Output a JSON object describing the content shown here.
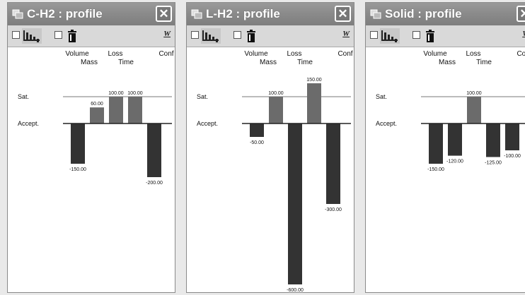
{
  "windows": [
    {
      "title": "C-H2 : profile",
      "toolbar": {
        "right_label": "W"
      },
      "chart_data": {
        "type": "bar",
        "categories": [
          "Volume",
          "Mass",
          "Loss",
          "Time",
          "Conf"
        ],
        "values": [
          -150.0,
          60.0,
          100.0,
          100.0,
          -200.0
        ],
        "value_labels": [
          "-150.00",
          "60.00",
          "100.00",
          "100.00",
          "-200.00"
        ],
        "reference_lines": [
          "Sat.",
          "Accept."
        ],
        "ylim": [
          -600,
          150
        ]
      }
    },
    {
      "title": "L-H2 : profile",
      "toolbar": {
        "right_label": "W"
      },
      "chart_data": {
        "type": "bar",
        "categories": [
          "Volume",
          "Mass",
          "Loss",
          "Time",
          "Conf"
        ],
        "values": [
          -50.0,
          100.0,
          -600.0,
          150.0,
          -300.0
        ],
        "value_labels": [
          "-50.00",
          "100.00",
          "-600.00",
          "150.00",
          "-300.00"
        ],
        "reference_lines": [
          "Sat.",
          "Accept."
        ],
        "ylim": [
          -600,
          150
        ]
      }
    },
    {
      "title": "Solid : profile",
      "toolbar": {
        "right_label": "W"
      },
      "chart_data": {
        "type": "bar",
        "categories": [
          "Volume",
          "Mass",
          "Loss",
          "Time",
          "Conf"
        ],
        "values": [
          -150.0,
          -120.0,
          100.0,
          -125.0,
          -100.0
        ],
        "value_labels": [
          "-150.00",
          "-120.00",
          "100.00",
          "-125.00",
          "-100.00"
        ],
        "reference_lines": [
          "Sat.",
          "Accept."
        ],
        "ylim": [
          -600,
          150
        ]
      }
    }
  ],
  "colors": {
    "positive_bar": "#6b6b6b",
    "negative_bar": "#333333",
    "axis_line": "#222222",
    "sat_line": "#777777"
  },
  "icons": {
    "title": "app-window-icon",
    "toolbar_1": "bar-chart-icon",
    "toolbar_2": "trash-bin-icon"
  }
}
